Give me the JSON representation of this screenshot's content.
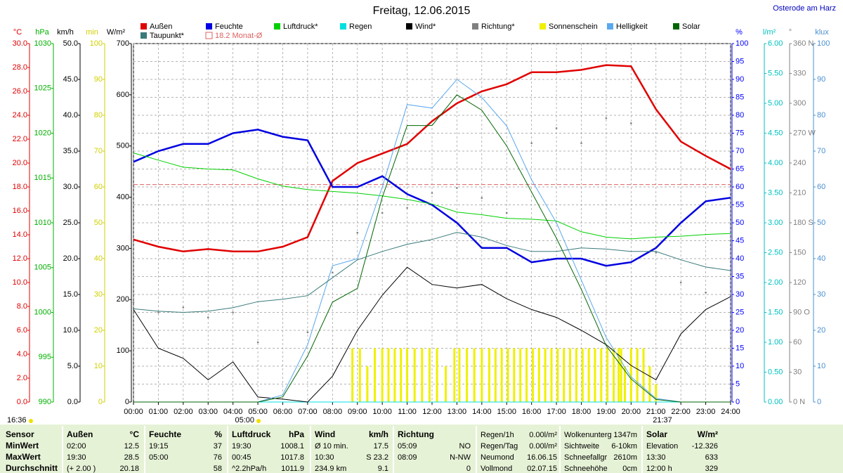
{
  "chart_data": {
    "type": "line",
    "title": "Freitag, 12.06.2015",
    "location": "Osterode am Harz",
    "time": "16:36",
    "sunrise": "05:00",
    "sunset": "21:37",
    "x": [
      0,
      1,
      2,
      3,
      4,
      5,
      6,
      7,
      8,
      9,
      10,
      11,
      12,
      13,
      14,
      15,
      16,
      17,
      18,
      19,
      20,
      21,
      22,
      23,
      24
    ],
    "xlim": [
      0,
      24
    ],
    "xticks": [
      {
        "value": 0,
        "label": "00:00"
      },
      {
        "value": 1,
        "label": "01:00"
      },
      {
        "value": 2,
        "label": "02:00"
      },
      {
        "value": 3,
        "label": "03:00"
      },
      {
        "value": 4,
        "label": "04:00"
      },
      {
        "value": 5,
        "label": "05:00"
      },
      {
        "value": 6,
        "label": "06:00"
      },
      {
        "value": 7,
        "label": "07:00"
      },
      {
        "value": 8,
        "label": "08:00"
      },
      {
        "value": 9,
        "label": "09:00"
      },
      {
        "value": 10,
        "label": "10:00"
      },
      {
        "value": 11,
        "label": "11:00"
      },
      {
        "value": 12,
        "label": "12:00"
      },
      {
        "value": 13,
        "label": "13:00"
      },
      {
        "value": 14,
        "label": "14:00"
      },
      {
        "value": 15,
        "label": "15:00"
      },
      {
        "value": 16,
        "label": "16:00"
      },
      {
        "value": 17,
        "label": "17:00"
      },
      {
        "value": 18,
        "label": "18:00"
      },
      {
        "value": 19,
        "label": "19:00"
      },
      {
        "value": 20,
        "label": "20:00"
      },
      {
        "value": 21,
        "label": "21:00"
      },
      {
        "value": 22,
        "label": "22:00"
      },
      {
        "value": 23,
        "label": "23:00"
      },
      {
        "value": 24,
        "label": "24:00"
      }
    ],
    "grid": true,
    "axes": [
      {
        "label": "°C",
        "color": "#e00000",
        "side": "left",
        "lim": [
          0,
          30
        ],
        "ticks": [
          {
            "value": 0,
            "label": "0.0"
          },
          {
            "value": 2,
            "label": "2.0"
          },
          {
            "value": 4,
            "label": "4.0"
          },
          {
            "value": 6,
            "label": "6.0"
          },
          {
            "value": 8,
            "label": "8.0"
          },
          {
            "value": 10,
            "label": "10.0"
          },
          {
            "value": 12,
            "label": "12.0"
          },
          {
            "value": 14,
            "label": "14.0"
          },
          {
            "value": 16,
            "label": "16.0"
          },
          {
            "value": 18,
            "label": "18.0"
          },
          {
            "value": 20,
            "label": "20.0"
          },
          {
            "value": 22,
            "label": "22.0"
          },
          {
            "value": 24,
            "label": "24.0"
          },
          {
            "value": 26,
            "label": "26.0"
          },
          {
            "value": 28,
            "label": "28.0"
          },
          {
            "value": 30,
            "label": "30.0"
          }
        ]
      },
      {
        "label": "hPa",
        "color": "#00b000",
        "side": "left",
        "lim": [
          990,
          1030
        ],
        "ticks": [
          990,
          995,
          1000,
          1005,
          1010,
          1015,
          1020,
          1025,
          1030
        ]
      },
      {
        "label": "km/h",
        "color": "#000000",
        "side": "left",
        "lim": [
          0,
          50
        ],
        "ticks": [
          {
            "value": 0,
            "label": "0.0"
          },
          {
            "value": 5,
            "label": "5.0"
          },
          {
            "value": 10,
            "label": "10.0"
          },
          {
            "value": 15,
            "label": "15.0"
          },
          {
            "value": 20,
            "label": "20.0"
          },
          {
            "value": 25,
            "label": "25.0"
          },
          {
            "value": 30,
            "label": "30.0"
          },
          {
            "value": 35,
            "label": "35.0"
          },
          {
            "value": 40,
            "label": "40.0"
          },
          {
            "value": 45,
            "label": "45.0"
          },
          {
            "value": 50,
            "label": "50.0"
          }
        ]
      },
      {
        "label": "min",
        "color": "#d0d000",
        "side": "left",
        "lim": [
          0,
          100
        ],
        "ticks": [
          0,
          10,
          20,
          30,
          40,
          50,
          60,
          70,
          80,
          90,
          100
        ]
      },
      {
        "label": "W/m²",
        "color": "#000000",
        "side": "left",
        "lim": [
          0,
          700
        ],
        "ticks": [
          0,
          100,
          200,
          300,
          400,
          500,
          600,
          700
        ]
      },
      {
        "label": "%",
        "color": "#0000ff",
        "side": "right",
        "lim": [
          0,
          100
        ],
        "ticks": [
          0,
          5,
          10,
          15,
          20,
          25,
          30,
          35,
          40,
          45,
          50,
          55,
          60,
          65,
          70,
          75,
          80,
          85,
          90,
          95,
          100
        ]
      },
      {
        "label": "l/m²",
        "color": "#00c0c0",
        "side": "right",
        "lim": [
          0,
          6
        ],
        "ticks": [
          {
            "value": 0,
            "label": "0.00"
          },
          {
            "value": 0.5,
            "label": "0.50"
          },
          {
            "value": 1,
            "label": "1.00"
          },
          {
            "value": 1.5,
            "label": "1.50"
          },
          {
            "value": 2,
            "label": "2.00"
          },
          {
            "value": 2.5,
            "label": "2.50"
          },
          {
            "value": 3,
            "label": "3.00"
          },
          {
            "value": 3.5,
            "label": "3.50"
          },
          {
            "value": 4,
            "label": "4.00"
          },
          {
            "value": 4.5,
            "label": "4.50"
          },
          {
            "value": 5,
            "label": "5.00"
          },
          {
            "value": 5.5,
            "label": "5.50"
          },
          {
            "value": 6,
            "label": "6.00"
          }
        ]
      },
      {
        "label": "°",
        "color": "#808080",
        "side": "right",
        "lim": [
          0,
          360
        ],
        "ticks": [
          {
            "value": 0,
            "label": "0 N"
          },
          30,
          60,
          {
            "value": 90,
            "label": "90 O"
          },
          120,
          150,
          {
            "value": 180,
            "label": "180 S"
          },
          210,
          240,
          {
            "value": 270,
            "label": "270 W"
          },
          300,
          330,
          {
            "value": 360,
            "label": "360 N"
          }
        ]
      },
      {
        "label": "klux",
        "color": "#4a90d0",
        "side": "right",
        "lim": [
          0,
          100
        ],
        "ticks": [
          0,
          10,
          20,
          30,
          40,
          50,
          60,
          70,
          80,
          90,
          100
        ]
      }
    ],
    "series": [
      {
        "name": "Außen",
        "color": "#e00000",
        "axis": "°C",
        "style": "line",
        "values": [
          13.6,
          13.0,
          12.6,
          12.8,
          12.6,
          12.6,
          13.0,
          13.8,
          18.5,
          20.0,
          20.8,
          21.6,
          23.5,
          25.0,
          26.0,
          26.6,
          27.6,
          27.6,
          27.8,
          28.2,
          28.1,
          24.5,
          21.8,
          20.6,
          19.5
        ]
      },
      {
        "name": "Feuchte",
        "color": "#0000e0",
        "axis": "%",
        "style": "line",
        "values": [
          67,
          70,
          72,
          72,
          75,
          76,
          74,
          73,
          60,
          60,
          63,
          58,
          55,
          50,
          43,
          43,
          39,
          40,
          40,
          38,
          39,
          43,
          50,
          56,
          57
        ]
      },
      {
        "name": "Luftdruck*",
        "color": "#00d000",
        "axis": "hPa",
        "style": "line",
        "values": [
          1017.8,
          1017,
          1016.2,
          1016,
          1015.9,
          1014.9,
          1014.1,
          1013.7,
          1013.5,
          1013.3,
          1013,
          1012.6,
          1012.1,
          1011.2,
          1010.9,
          1010.5,
          1010.4,
          1010.2,
          1009,
          1008.4,
          1008.2,
          1008.4,
          1008.5,
          1008.7,
          1008.8
        ]
      },
      {
        "name": "Regen",
        "color": "#00e0e0",
        "axis": "l/m²",
        "style": "line",
        "values": [
          0,
          0,
          0,
          0,
          0,
          0,
          0,
          0,
          0,
          0,
          0,
          0,
          0,
          0,
          0,
          0,
          0,
          0,
          0,
          0,
          0,
          0,
          0,
          0,
          0
        ]
      },
      {
        "name": "Wind*",
        "color": "#000000",
        "axis": "km/h",
        "style": "line",
        "values": [
          12.9,
          7.5,
          6.1,
          3.1,
          5.6,
          0.7,
          0.4,
          0,
          3.6,
          10,
          14.9,
          18.8,
          16.4,
          15.9,
          16.4,
          14.4,
          12.9,
          11.8,
          10,
          8,
          5.1,
          3.1,
          9.5,
          12.9,
          14.7
        ]
      },
      {
        "name": "Richtung*",
        "color": "#808080",
        "axis": "°",
        "style": "dots",
        "values": [
          100,
          90,
          95,
          85,
          90,
          60,
          null,
          70,
          130,
          170,
          190,
          195,
          210,
          215,
          205,
          190,
          260,
          275,
          260,
          285,
          280,
          150,
          120,
          110,
          null
        ]
      },
      {
        "name": "Sonnenschein",
        "color": "#f0f000",
        "axis": "min",
        "style": "bars",
        "x": [
          8.8,
          9.1,
          9.4,
          9.7,
          10.0,
          10.25,
          10.5,
          10.75,
          11.0,
          11.3,
          11.6,
          11.9,
          12.2,
          12.55,
          12.9,
          13.1,
          13.4,
          13.7,
          14.0,
          14.3,
          14.55,
          14.8,
          15.05,
          15.3,
          15.55,
          15.8,
          16.05,
          16.3,
          16.55,
          16.8,
          17.05,
          17.3,
          17.55,
          17.8,
          18.05,
          18.3,
          18.55,
          18.8,
          19.05,
          19.3,
          19.5,
          19.6,
          19.75,
          20.0,
          20.25,
          20.5,
          20.75,
          21.0
        ],
        "values": [
          15,
          15,
          10,
          15,
          15,
          15,
          15,
          15,
          15,
          15,
          15,
          15,
          15,
          10,
          15,
          15,
          15,
          15,
          15,
          15,
          15,
          15,
          15,
          15,
          15,
          15,
          15,
          15,
          15,
          15,
          15,
          15,
          15,
          15,
          15,
          15,
          15,
          15,
          15,
          15,
          15,
          15,
          10,
          15,
          15,
          15,
          10,
          5
        ]
      },
      {
        "name": "Helligkeit",
        "color": "#5aa8ee",
        "axis": "klux",
        "style": "line",
        "values": [
          0,
          0,
          0,
          0,
          0,
          0,
          2,
          16,
          38,
          40,
          60,
          83,
          82,
          90,
          85,
          77,
          62,
          50,
          34,
          18,
          7,
          1,
          0,
          0,
          0
        ]
      },
      {
        "name": "Solar",
        "color": "#006400",
        "axis": "W/m²",
        "style": "line",
        "values": [
          0,
          0,
          0,
          0,
          0,
          0,
          10,
          90,
          195,
          222,
          400,
          540,
          540,
          600,
          570,
          500,
          410,
          320,
          220,
          110,
          45,
          5,
          0,
          0,
          0
        ]
      },
      {
        "name": "Taupunkt*",
        "color": "#3a7a7a",
        "axis": "°C",
        "style": "line",
        "values": [
          7.8,
          7.6,
          7.5,
          7.6,
          7.9,
          8.4,
          8.6,
          8.9,
          10.4,
          11.9,
          12.6,
          13.2,
          13.6,
          14.2,
          13.8,
          13.1,
          12.6,
          12.6,
          12.9,
          12.8,
          12.6,
          12.6,
          11.9,
          11.3,
          11.0
        ]
      }
    ],
    "month_avg": {
      "label": "18.2 Monat-Ø",
      "value": 18.2,
      "axis": "°C",
      "color": "#e06060"
    },
    "table": {
      "row_labels": [
        "Sensor",
        "MinWert",
        "MaxWert",
        "Durchschnitt"
      ],
      "groups": [
        {
          "name": "Außen",
          "unit": "°C",
          "rows": [
            [
              "02:00",
              "12.5"
            ],
            [
              "19:30",
              "28.5"
            ],
            [
              "(+ 2.00 )",
              "20.18"
            ]
          ]
        },
        {
          "name": "Feuchte",
          "unit": "%",
          "rows": [
            [
              "19:15",
              "37"
            ],
            [
              "05:00",
              "76"
            ],
            [
              null,
              "58"
            ]
          ]
        },
        {
          "name": "Luftdruck",
          "unit": "hPa",
          "rows": [
            [
              "19:30",
              "1008.1"
            ],
            [
              "00:45",
              "1017.8"
            ],
            [
              "^2.2hPa/h",
              "1011.9"
            ]
          ]
        },
        {
          "name": "Wind",
          "unit": "km/h",
          "rows": [
            [
              "Ø 10 min.",
              "17.5"
            ],
            [
              "10:30",
              "S 23.2"
            ],
            [
              "234.9 km",
              "9.1"
            ]
          ]
        },
        {
          "name": "Richtung",
          "unit": null,
          "rows": [
            [
              "05:09",
              "NO"
            ],
            [
              "08:09",
              "N-NW"
            ],
            [
              null,
              "0"
            ]
          ]
        }
      ],
      "extras": [
        [
          [
            "Regen/1h",
            "0.00l/m²"
          ],
          [
            "Regen/Tag",
            "0.00l/m²"
          ],
          [
            "Neumond",
            "16.06.15"
          ],
          [
            "Vollmond",
            "02.07.15"
          ]
        ],
        [
          [
            "Wolkenunterg",
            "1347m"
          ],
          [
            "Sichtweite",
            "6-10km"
          ],
          [
            "Schneefallgr",
            "2610m"
          ],
          [
            "Schneehöhe",
            "0cm"
          ]
        ],
        [
          [
            "Solar",
            "W/m²"
          ],
          [
            "Elevation",
            "-12.326"
          ],
          [
            "13:30",
            "633"
          ],
          [
            "12:00 h",
            "329"
          ]
        ]
      ]
    }
  }
}
